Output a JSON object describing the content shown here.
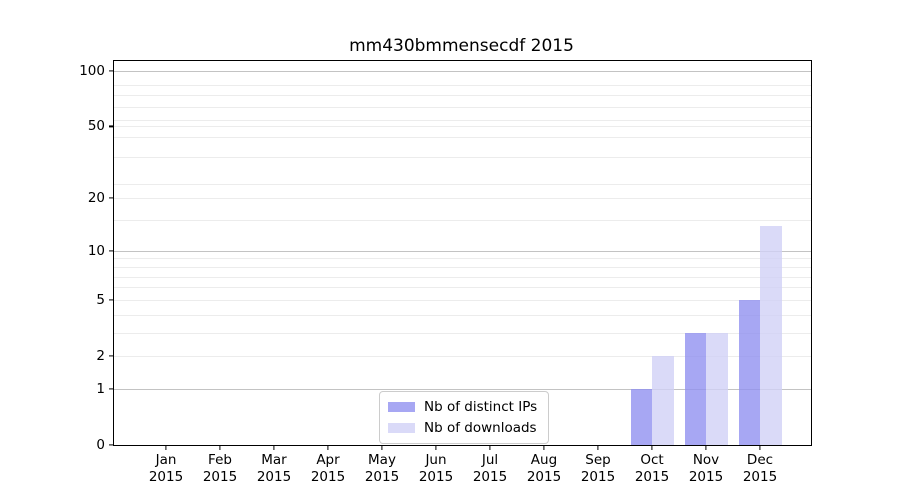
{
  "chart_data": {
    "type": "bar",
    "title": "mm430bmmensecdf 2015",
    "x": {
      "months": [
        "Jan",
        "Feb",
        "Mar",
        "Apr",
        "May",
        "Jun",
        "Jul",
        "Aug",
        "Sep",
        "Oct",
        "Nov",
        "Dec"
      ],
      "year": "2015"
    },
    "y_axis": {
      "scale": "log(1+value)",
      "tick_values": [
        0,
        1,
        2,
        5,
        10,
        20,
        50,
        100
      ],
      "ylim": [
        0,
        110
      ]
    },
    "series": [
      {
        "name": "Nb of distinct IPs",
        "color": "#a7a7f5",
        "base_color": "#9191f0",
        "fill_opacity": 0.8,
        "values": [
          0,
          0,
          0,
          0,
          0,
          0,
          0,
          0,
          0,
          1,
          3,
          5
        ]
      },
      {
        "name": "Nb of downloads",
        "color": "#dadaf8",
        "base_color": "#d1d1f6",
        "fill_opacity": 0.8,
        "values": [
          0,
          0,
          0,
          0,
          0,
          0,
          0,
          0,
          0,
          2,
          3,
          14
        ]
      }
    ],
    "gridlines": {
      "major": [
        1,
        10,
        100
      ],
      "minor": [
        2,
        3,
        4,
        5,
        6,
        7,
        8,
        9,
        15,
        20,
        24,
        34,
        44,
        50,
        54,
        64,
        74,
        84
      ],
      "major_color": "#c3c3c3",
      "minor_color": "#ececec"
    },
    "legend": {
      "position": "lower center",
      "entries": [
        "Nb of distinct IPs",
        "Nb of downloads"
      ]
    },
    "grid": true
  }
}
